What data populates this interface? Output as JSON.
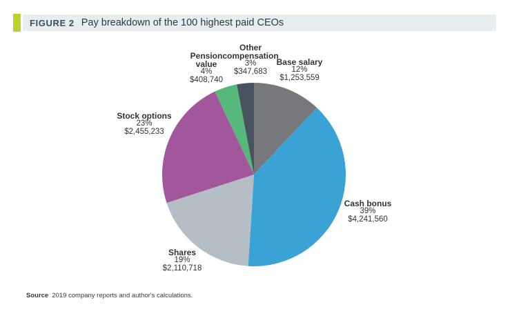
{
  "header": {
    "figure_label": "FIGURE 2",
    "title": "Pay breakdown of the 100 highest paid CEOs",
    "accent_color": "#becf2e",
    "bar_background": "#e8edf0",
    "label_color": "#3e4d59",
    "title_color": "#30383f"
  },
  "chart_data": {
    "type": "pie",
    "title": "Pay breakdown of the 100 highest paid CEOs",
    "start_angle_deg": 0,
    "direction": "clockwise",
    "slices": [
      {
        "label": "Base salary",
        "pct": 12,
        "pct_text": "12%",
        "value": "$1,253,559",
        "color": "#76787b"
      },
      {
        "label": "Cash bonus",
        "pct": 39,
        "pct_text": "39%",
        "value": "$4,241,560",
        "color": "#39a3d6"
      },
      {
        "label": "Shares",
        "pct": 19,
        "pct_text": "19%",
        "value": "$2,110,718",
        "color": "#b5bec5"
      },
      {
        "label": "Stock options",
        "pct": 23,
        "pct_text": "23%",
        "value": "$2,455,233",
        "color": "#a2569b"
      },
      {
        "label": "Pension value",
        "pct": 4,
        "pct_text": "4%",
        "value": "$408,740",
        "color": "#56b87b"
      },
      {
        "label": "Other compensation",
        "pct": 3,
        "pct_text": "3%",
        "value": "$347,683",
        "color": "#47545f"
      }
    ]
  },
  "footer": {
    "source_label": "Source",
    "source_text": "2019 company reports and author's calculations."
  }
}
